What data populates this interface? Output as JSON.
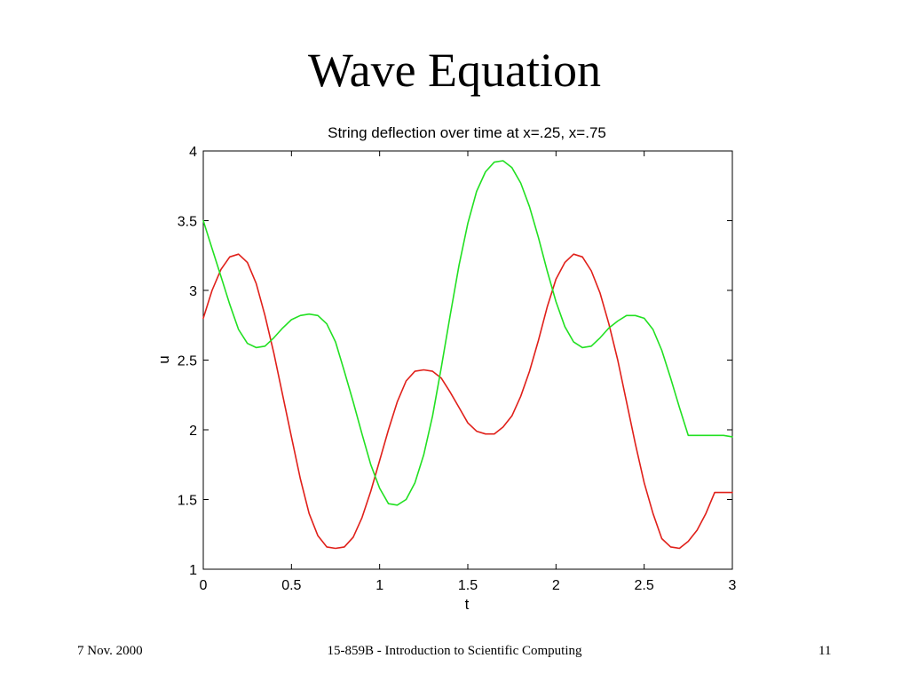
{
  "slide": {
    "title": "Wave Equation",
    "footer_date": "7 Nov. 2000",
    "footer_course": "15-859B - Introduction to Scientific Computing",
    "page_number": "11"
  },
  "colors": {
    "series_x025": "#e0201a",
    "series_x075": "#22e022",
    "axes": "#000000"
  },
  "chart_data": {
    "type": "line",
    "title": "String deflection over time at x=.25, x=.75",
    "xlabel": "t",
    "ylabel": "u",
    "xlim": [
      0,
      3
    ],
    "ylim": [
      1,
      4
    ],
    "xticks": [
      0,
      0.5,
      1,
      1.5,
      2,
      2.5,
      3
    ],
    "xtick_labels": [
      "0",
      "0.5",
      "1",
      "1.5",
      "2",
      "2.5",
      "3"
    ],
    "yticks": [
      1,
      1.5,
      2,
      2.5,
      3,
      3.5,
      4
    ],
    "ytick_labels": [
      "1",
      "1.5",
      "2",
      "2.5",
      "3",
      "3.5",
      "4"
    ],
    "grid": false,
    "series": [
      {
        "color": "#e0201a",
        "x": [
          0,
          0.05,
          0.1,
          0.15,
          0.2,
          0.25,
          0.3,
          0.35,
          0.4,
          0.45,
          0.5,
          0.55,
          0.6,
          0.65,
          0.7,
          0.75,
          0.8,
          0.85,
          0.9,
          0.95,
          1.0,
          1.05,
          1.1,
          1.15,
          1.2,
          1.25,
          1.3,
          1.35,
          1.4,
          1.45,
          1.5,
          1.55,
          1.6,
          1.65,
          1.7,
          1.75,
          1.8,
          1.85,
          1.9,
          1.95,
          2.0,
          2.05,
          2.1,
          2.15,
          2.2,
          2.25,
          2.3,
          2.35,
          2.4,
          2.45,
          2.5,
          2.55,
          2.6,
          2.65,
          2.7,
          2.75,
          2.8,
          2.85,
          2.9,
          2.95,
          3.0
        ],
        "values": [
          2.8,
          3.0,
          3.15,
          3.24,
          3.26,
          3.2,
          3.05,
          2.82,
          2.55,
          2.25,
          1.95,
          1.65,
          1.4,
          1.24,
          1.16,
          1.15,
          1.16,
          1.23,
          1.37,
          1.56,
          1.78,
          2.0,
          2.2,
          2.35,
          2.42,
          2.43,
          2.42,
          2.37,
          2.27,
          2.16,
          2.05,
          1.99,
          1.97,
          1.97,
          2.02,
          2.1,
          2.24,
          2.42,
          2.64,
          2.88,
          3.08,
          3.2,
          3.26,
          3.24,
          3.14,
          2.98,
          2.76,
          2.5,
          2.2,
          1.9,
          1.62,
          1.4,
          1.22,
          1.16,
          1.15,
          1.2,
          1.28,
          1.4,
          1.55,
          1.55,
          1.55
        ]
      },
      {
        "color": "#22e022",
        "x": [
          0,
          0.05,
          0.1,
          0.15,
          0.2,
          0.25,
          0.3,
          0.35,
          0.4,
          0.45,
          0.5,
          0.55,
          0.6,
          0.65,
          0.7,
          0.75,
          0.8,
          0.85,
          0.9,
          0.95,
          1.0,
          1.05,
          1.1,
          1.15,
          1.2,
          1.25,
          1.3,
          1.35,
          1.4,
          1.45,
          1.5,
          1.55,
          1.6,
          1.65,
          1.7,
          1.75,
          1.8,
          1.85,
          1.9,
          1.95,
          2.0,
          2.05,
          2.1,
          2.15,
          2.2,
          2.25,
          2.3,
          2.35,
          2.4,
          2.45,
          2.5,
          2.55,
          2.6,
          2.65,
          2.7,
          2.75,
          2.8,
          2.85,
          2.9,
          2.95,
          3.0
        ],
        "values": [
          3.5,
          3.3,
          3.1,
          2.9,
          2.72,
          2.62,
          2.59,
          2.6,
          2.66,
          2.73,
          2.79,
          2.82,
          2.83,
          2.82,
          2.76,
          2.63,
          2.42,
          2.2,
          1.97,
          1.75,
          1.58,
          1.47,
          1.46,
          1.5,
          1.62,
          1.82,
          2.1,
          2.45,
          2.82,
          3.18,
          3.48,
          3.71,
          3.85,
          3.92,
          3.93,
          3.88,
          3.77,
          3.6,
          3.38,
          3.14,
          2.92,
          2.74,
          2.63,
          2.59,
          2.6,
          2.66,
          2.73,
          2.78,
          2.82,
          2.82,
          2.8,
          2.72,
          2.57,
          2.37,
          2.16,
          1.96,
          1.96,
          1.96,
          1.96,
          1.96,
          1.95
        ]
      }
    ]
  }
}
